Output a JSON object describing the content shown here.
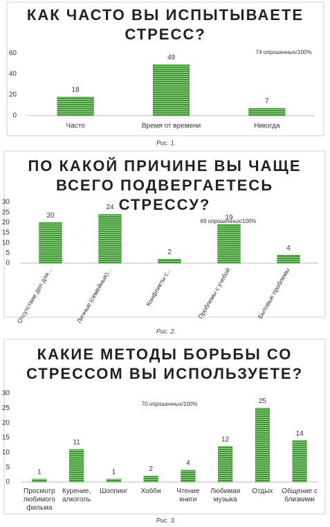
{
  "chart_data": [
    {
      "type": "bar",
      "title": "КАК ЧАСТО ВЫ ИСПЫТЫВАЕТЕ СТРЕСС?",
      "annotation": "74 опрошенных/100%",
      "caption": "Рис. 1.",
      "categories": [
        "Часто",
        "Время от времени",
        "Никогда"
      ],
      "values": [
        18,
        49,
        7
      ],
      "color": "#3c9a2e",
      "ylim": [
        0,
        60
      ],
      "yticks": [
        0,
        20,
        40,
        60
      ]
    },
    {
      "type": "bar",
      "title": "ПО КАКОЙ ПРИЧИНЕ ВЫ ЧАЩЕ ВСЕГО ПОДВЕРГАЕТЕСЬ СТРЕССУ?",
      "annotation": "69 опрошенных/100%",
      "caption": "Рис. 2.",
      "categories": [
        "Отсутствие дел для...",
        "Личные (семейные)...",
        "Конфликты с...",
        "Проблемы с учебой",
        "Бытовые проблемы"
      ],
      "values": [
        20,
        24,
        2,
        19,
        4
      ],
      "color": "#3c9a2e",
      "ylim": [
        0,
        30
      ],
      "yticks": [
        0,
        5,
        10,
        15,
        20,
        25,
        30
      ]
    },
    {
      "type": "bar",
      "title": "КАКИЕ МЕТОДЫ БОРЬБЫ СО СТРЕССОМ ВЫ ИСПОЛЬЗУЕТЕ?",
      "annotation": "70 опрошенных/100%",
      "caption": "Рис. 3.",
      "categories": [
        "Просмотр любимого фильма",
        "Курение, алкоголь",
        "Шоппинг",
        "Хобби",
        "Чтение книги",
        "Любимая музыка",
        "Отдых",
        "Общение с близкими"
      ],
      "values": [
        1,
        11,
        1,
        2,
        4,
        12,
        25,
        14
      ],
      "color": "#3c9a2e",
      "ylim": [
        0,
        30
      ],
      "yticks": [
        0,
        5,
        10,
        15,
        20,
        25,
        30
      ]
    }
  ]
}
